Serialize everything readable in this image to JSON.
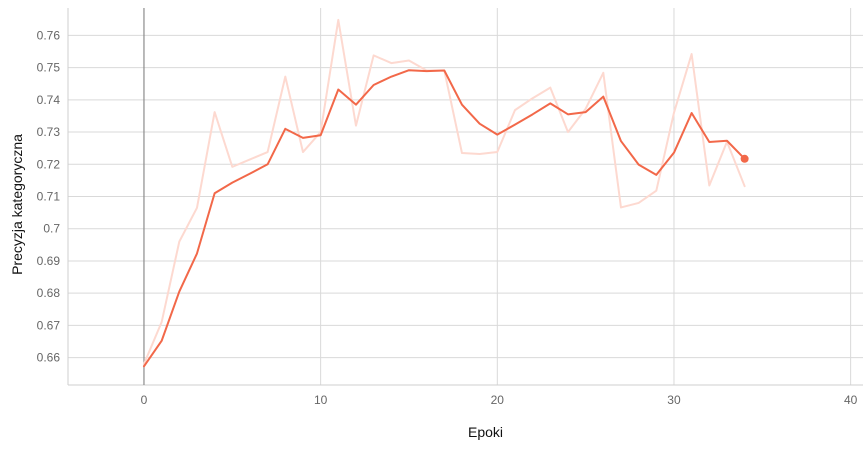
{
  "chart_data": {
    "type": "line",
    "title": "",
    "xlabel": "Epoki",
    "ylabel": "Precyzja kategoryczna",
    "xlim": [
      -4.3,
      40.7
    ],
    "ylim": [
      0.6515,
      0.7685
    ],
    "xticks": [
      0,
      10,
      20,
      30,
      40
    ],
    "xtick_labels": [
      "0",
      "10",
      "20",
      "30",
      "40"
    ],
    "yticks": [
      0.66,
      0.67,
      0.68,
      0.69,
      0.7,
      0.71,
      0.72,
      0.73,
      0.74,
      0.75,
      0.76
    ],
    "ytick_labels": [
      "0.66",
      "0.67",
      "0.68",
      "0.69",
      "0.7",
      "0.71",
      "0.72",
      "0.73",
      "0.74",
      "0.75",
      "0.76"
    ],
    "grid": true,
    "legend": "none",
    "series": [
      {
        "role": "raw",
        "color": "#fdd9d0",
        "x": [
          0,
          1,
          2,
          3,
          4,
          5,
          6,
          7,
          8,
          9,
          10,
          11,
          12,
          13,
          14,
          15,
          16,
          17,
          18,
          19,
          20,
          21,
          22,
          23,
          24,
          25,
          26,
          27,
          28,
          29,
          30,
          31,
          32,
          33,
          34
        ],
        "values": [
          0.658,
          0.671,
          0.696,
          0.7065,
          0.7362,
          0.7192,
          0.7215,
          0.7238,
          0.7472,
          0.7238,
          0.73,
          0.7648,
          0.732,
          0.7538,
          0.7514,
          0.7522,
          0.7491,
          0.7491,
          0.7235,
          0.7232,
          0.7238,
          0.7368,
          0.7405,
          0.7438,
          0.73,
          0.7372,
          0.7484,
          0.7066,
          0.708,
          0.7118,
          0.736,
          0.7542,
          0.7134,
          0.727,
          0.7132
        ]
      },
      {
        "role": "smoothed",
        "color": "#f26849",
        "x": [
          0,
          1,
          2,
          3,
          4,
          5,
          6,
          7,
          8,
          9,
          10,
          11,
          12,
          13,
          14,
          15,
          16,
          17,
          18,
          19,
          20,
          21,
          22,
          23,
          24,
          25,
          26,
          27,
          28,
          29,
          30,
          31,
          32,
          33,
          34
        ],
        "values": [
          0.6573,
          0.6652,
          0.6805,
          0.6923,
          0.711,
          0.7143,
          0.7171,
          0.72,
          0.731,
          0.7282,
          0.729,
          0.7432,
          0.7385,
          0.7446,
          0.7472,
          0.7492,
          0.7489,
          0.7491,
          0.7385,
          0.7326,
          0.7292,
          0.7323,
          0.7355,
          0.7389,
          0.7355,
          0.7362,
          0.741,
          0.7272,
          0.7199,
          0.7167,
          0.7236,
          0.7359,
          0.7269,
          0.7273,
          0.7217
        ]
      }
    ]
  }
}
